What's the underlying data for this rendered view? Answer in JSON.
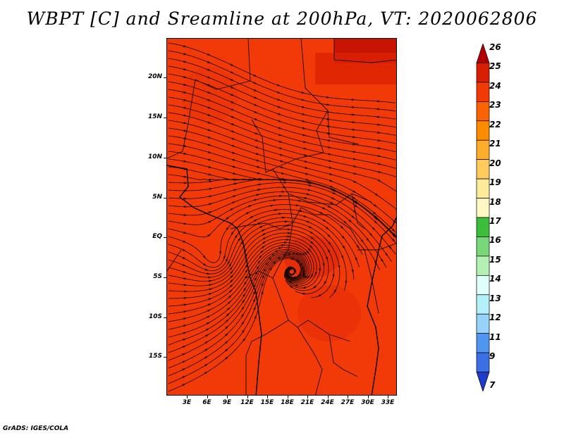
{
  "title": "WBPT [C] and Sreamline at 200hPa, VT: 2020062806",
  "credit": "GrADS: IGES/COLA",
  "map": {
    "field": "WBPT",
    "base_color": "#f23a08",
    "lat_labels": [
      "20N",
      "15N",
      "10N",
      "5N",
      "EQ",
      "5S",
      "10S",
      "15S"
    ],
    "lon_labels": [
      "3E",
      "6E",
      "9E",
      "12E",
      "15E",
      "18E",
      "21E",
      "24E",
      "27E",
      "30E",
      "33E"
    ]
  },
  "colorbar": {
    "labels": [
      "26",
      "25",
      "24",
      "23",
      "22",
      "21",
      "20",
      "19",
      "18",
      "17",
      "16",
      "15",
      "14",
      "13",
      "12",
      "11",
      "9",
      "7"
    ],
    "colors": [
      "#b40000",
      "#d81e05",
      "#f23a08",
      "#fb6200",
      "#fd8b00",
      "#feac2c",
      "#fecb5c",
      "#feea9b",
      "#fff8c4",
      "#3cbe3c",
      "#78d778",
      "#b4f0b4",
      "#e1fffa",
      "#b4f0fa",
      "#96d2fa",
      "#5096f0",
      "#3c6ee6",
      "#1e3cc8"
    ]
  }
}
